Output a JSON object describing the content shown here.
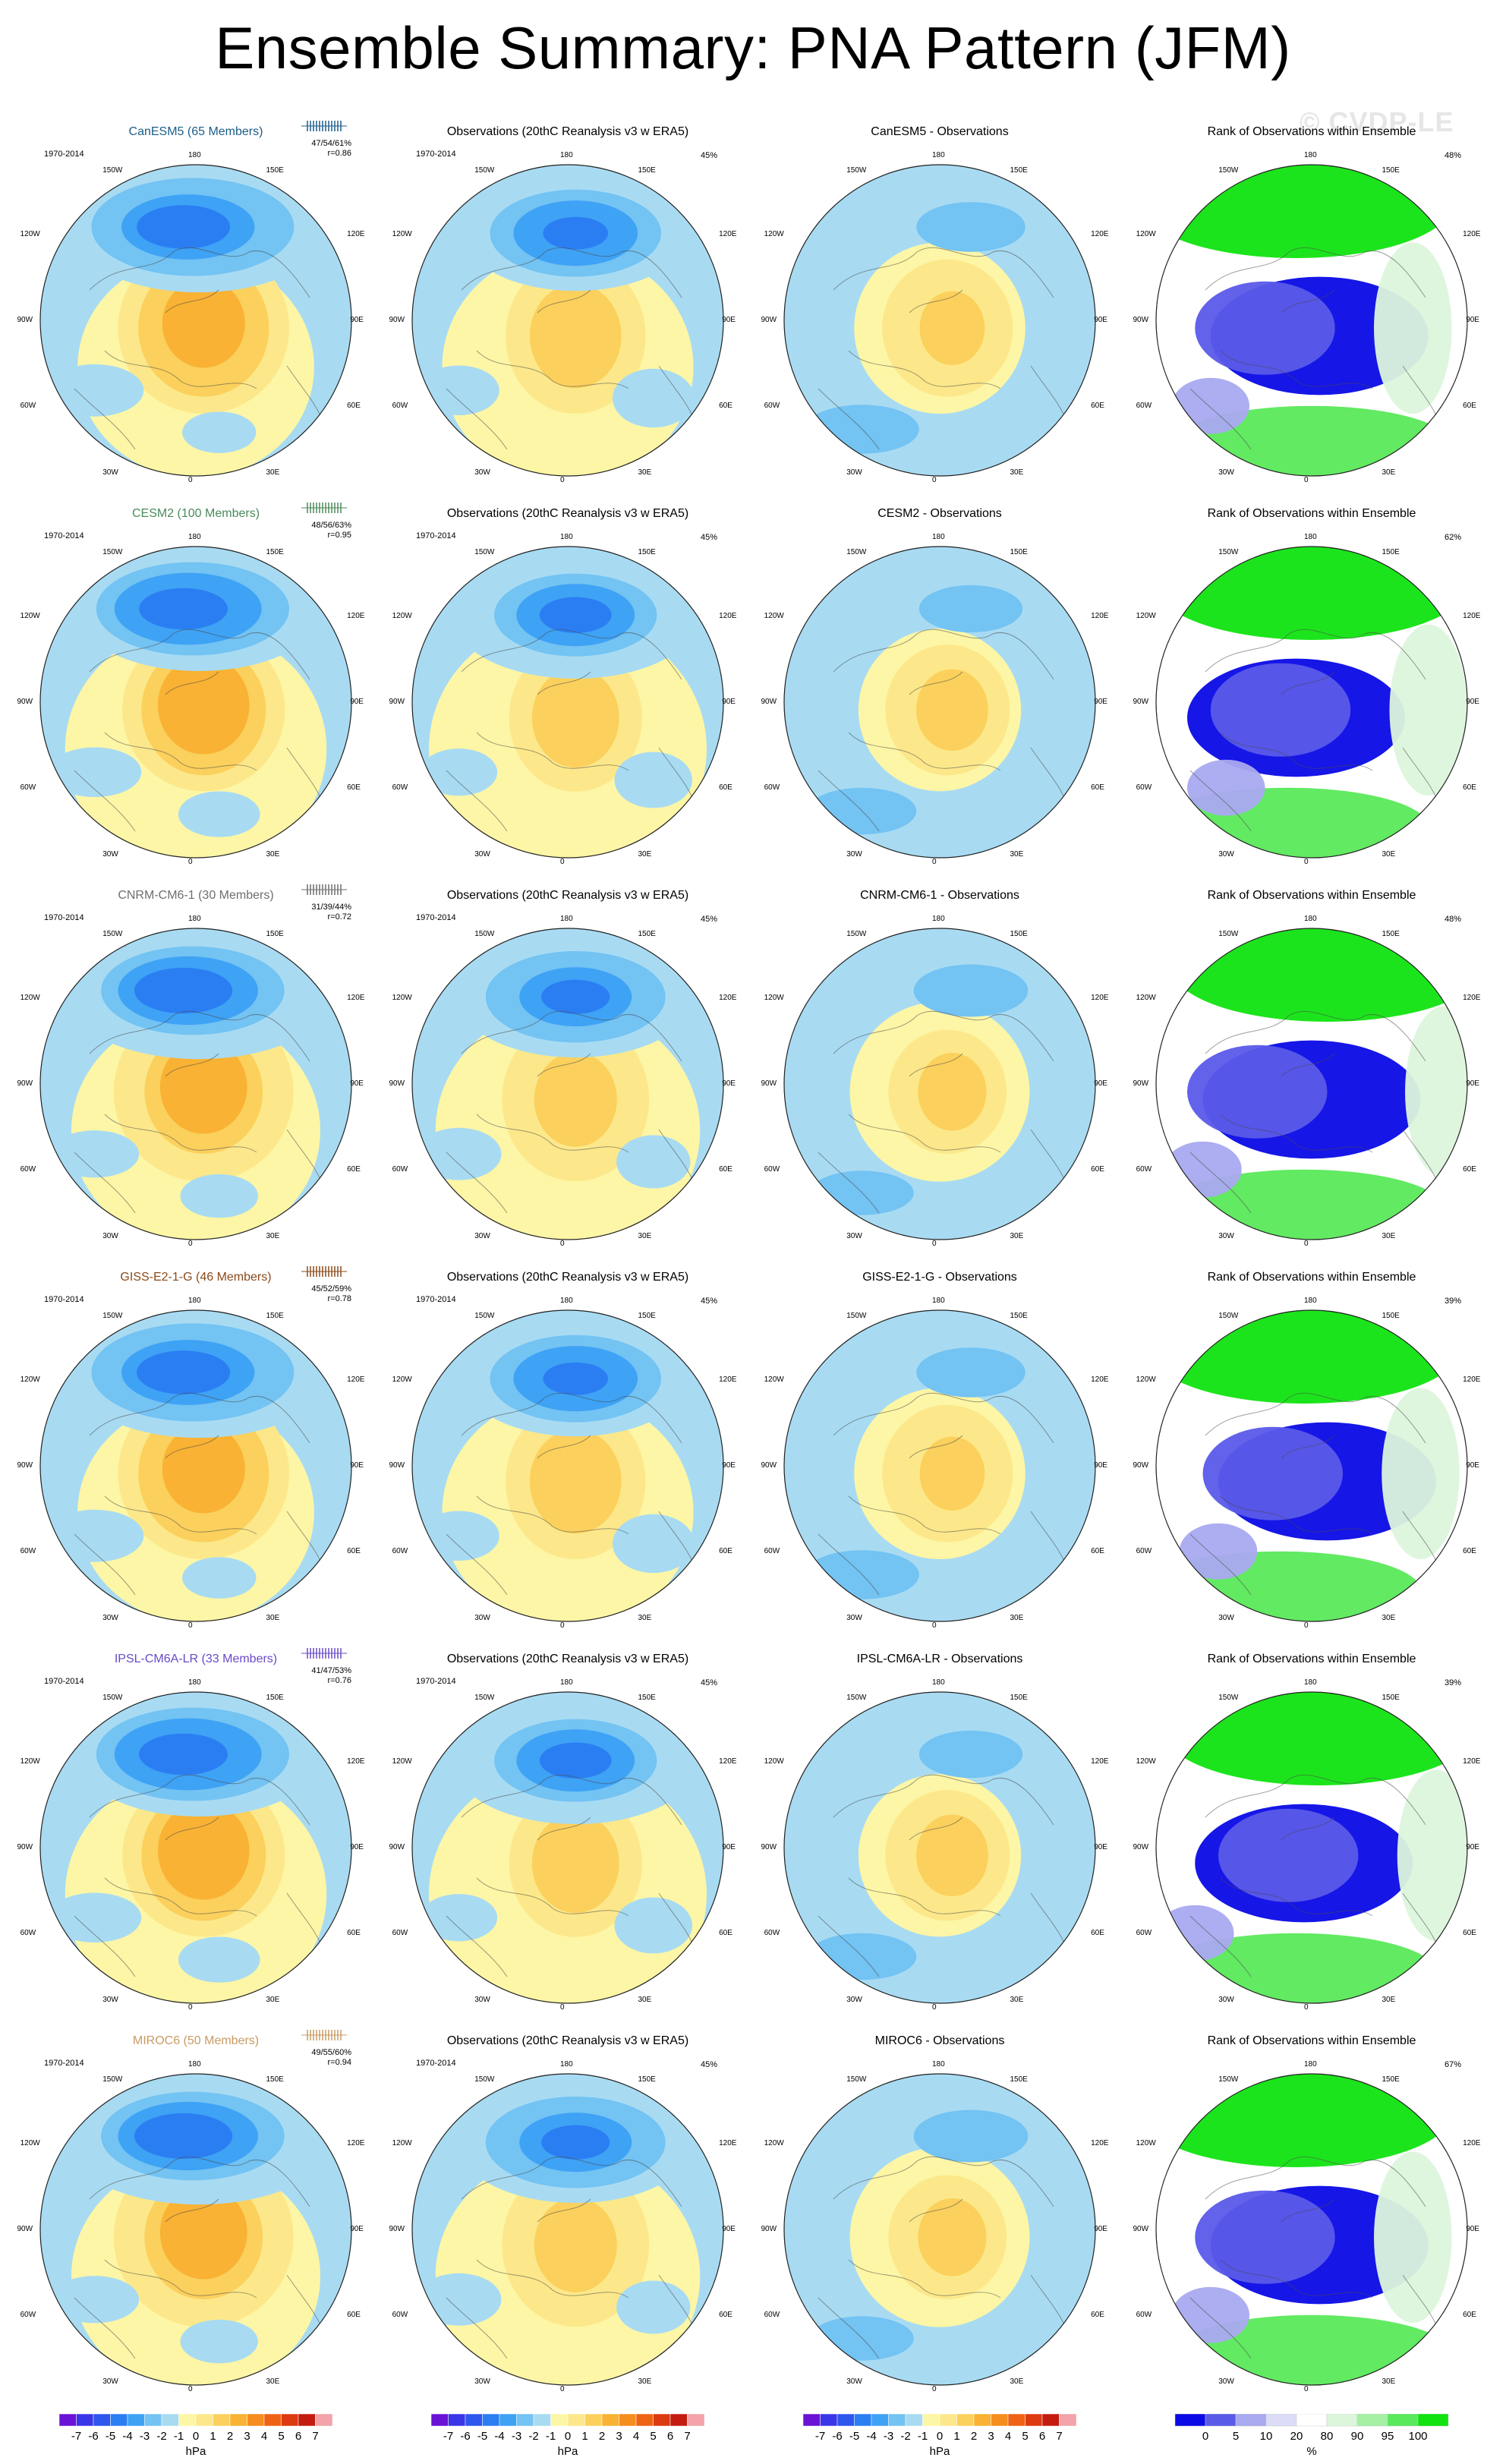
{
  "title": "Ensemble Summary: PNA Pattern (JFM)",
  "watermark": "© CVDP-LE",
  "period": "1970-2014",
  "obs_title": "Observations (20thC Reanalysis v3 w ERA5)",
  "obs_pct": "45%",
  "rank_title": "Rank of Observations within Ensemble",
  "lon_labels": {
    "top": "180",
    "tl": "150W",
    "tr": "150E",
    "ul": "120W",
    "ur": "120E",
    "l": "90W",
    "r": "90E",
    "ll": "60W",
    "lr": "60E",
    "bl": "30W",
    "br": "30E",
    "bottom": "0"
  },
  "colors": {
    "slp_levels": [
      "#6a12d6",
      "#3b35e8",
      "#2e57ee",
      "#2b7ef2",
      "#3ea2f5",
      "#73c3f3",
      "#a8dbf2",
      "#fdf6a6",
      "#fce88a",
      "#fbd05c",
      "#f9b233",
      "#f58e1f",
      "#ee6414",
      "#dc3a10",
      "#c31b10",
      "#f3a3a9"
    ],
    "rank_levels": [
      "#0a0ae6",
      "#5a5ae9",
      "#a9a9f0",
      "#dcdcf6",
      "#ffffff",
      "#dcf6dc",
      "#a4f1a4",
      "#5ae95a",
      "#10e310"
    ]
  },
  "rows": [
    {
      "model": "CanESM5 (65 Members)",
      "model_color": "#1b5e8a",
      "stats": "47/54/61%",
      "r": "r=0.86",
      "diff_title": "CanESM5 - Observations",
      "rank_pct": "48%"
    },
    {
      "model": "CESM2 (100 Members)",
      "model_color": "#4a8a5a",
      "stats": "48/56/63%",
      "r": "r=0.95",
      "diff_title": "CESM2 - Observations",
      "rank_pct": "62%"
    },
    {
      "model": "CNRM-CM6-1 (30 Members)",
      "model_color": "#6e6e6e",
      "stats": "31/39/44%",
      "r": "r=0.72",
      "diff_title": "CNRM-CM6-1 - Observations",
      "rank_pct": "48%"
    },
    {
      "model": "GISS-E2-1-G (46 Members)",
      "model_color": "#8a4a1a",
      "stats": "45/52/59%",
      "r": "r=0.78",
      "diff_title": "GISS-E2-1-G - Observations",
      "rank_pct": "39%"
    },
    {
      "model": "IPSL-CM6A-LR (33 Members)",
      "model_color": "#6a4ac8",
      "stats": "41/47/53%",
      "r": "r=0.76",
      "diff_title": "IPSL-CM6A-LR - Observations",
      "rank_pct": "39%"
    },
    {
      "model": "MIROC6 (50 Members)",
      "model_color": "#c89a62",
      "stats": "49/55/60%",
      "r": "r=0.94",
      "diff_title": "MIROC6 - Observations",
      "rank_pct": "67%"
    }
  ],
  "chart_data": {
    "type": "heatmap",
    "description_of_panels": [
      "Ensemble mean",
      "Observations",
      "Ensemble mean - Observations",
      "Rank of Observations within Ensemble"
    ],
    "slp_colorbar": {
      "labels": [
        "-7",
        "-6",
        "-5",
        "-4",
        "-3",
        "-2",
        "-1",
        "0",
        "1",
        "2",
        "3",
        "4",
        "5",
        "6",
        "7"
      ],
      "units": "hPa"
    },
    "rank_colorbar": {
      "labels": [
        "0",
        "5",
        "10",
        "20",
        "80",
        "90",
        "95",
        "100"
      ],
      "units": "%"
    }
  }
}
